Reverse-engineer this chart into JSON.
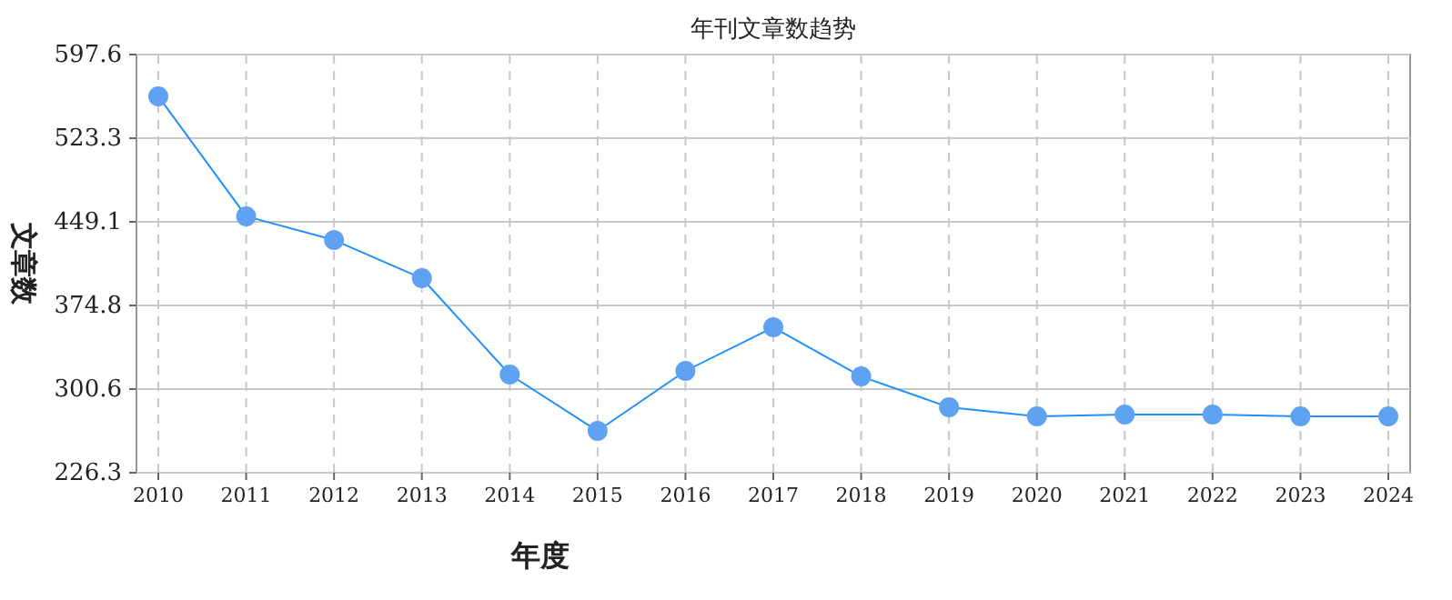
{
  "chart_data": {
    "type": "line",
    "title": "年刊文章数趋势",
    "xlabel": "年度",
    "ylabel": "文章数",
    "categories": [
      "2010",
      "2011",
      "2012",
      "2013",
      "2014",
      "2015",
      "2016",
      "2017",
      "2018",
      "2019",
      "2020",
      "2021",
      "2022",
      "2023",
      "2024"
    ],
    "series": [
      {
        "color": "#1e90ff",
        "values": [
          560.5,
          454,
          432.9,
          399,
          313.5,
          263.4,
          316.7,
          355.4,
          311.8,
          284.4,
          276.4,
          278,
          278,
          276.4,
          276.4
        ]
      }
    ],
    "ylim": [
      226.3,
      597.6
    ],
    "yticks": [
      226.3,
      300.6,
      374.8,
      449.1,
      523.3,
      597.6
    ],
    "grid": true,
    "marker": "circle"
  }
}
